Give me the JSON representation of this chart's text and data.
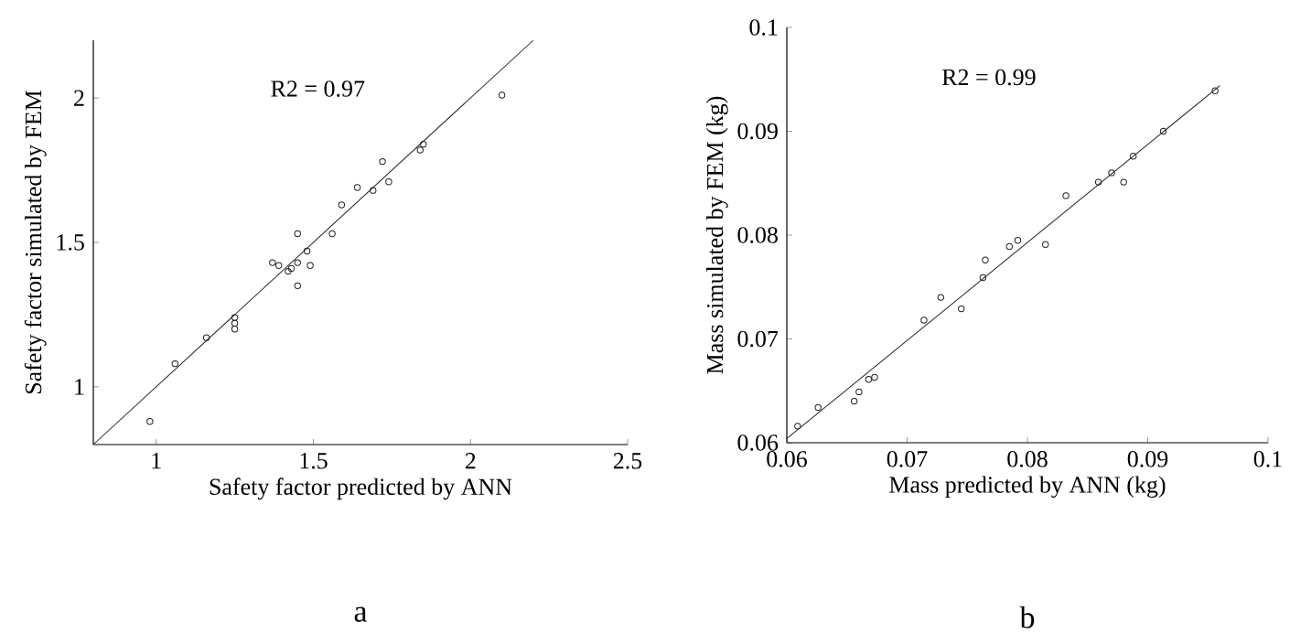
{
  "chart_data": [
    {
      "type": "scatter",
      "xlabel": "Safety factor predicted by ANN",
      "ylabel": "Safety factor simulated by FEM",
      "annotations": [
        "R2 = 0.97",
        "a"
      ],
      "xlim": [
        0.8,
        2.5
      ],
      "ylim": [
        0.8,
        2.2
      ],
      "xticks": [
        1,
        1.5,
        2,
        2.5
      ],
      "yticks": [
        1,
        1.5,
        2
      ],
      "series": [
        {
          "marker": "circle",
          "color": "#222222",
          "x": [
            0.98,
            1.06,
            1.16,
            1.25,
            1.25,
            1.25,
            1.37,
            1.39,
            1.42,
            1.43,
            1.45,
            1.45,
            1.45,
            1.48,
            1.49,
            1.56,
            1.59,
            1.64,
            1.69,
            1.72,
            1.74,
            1.85,
            1.84,
            2.1
          ],
          "values": [
            0.88,
            1.08,
            1.17,
            1.24,
            1.22,
            1.2,
            1.43,
            1.42,
            1.4,
            1.41,
            1.43,
            1.53,
            1.35,
            1.47,
            1.42,
            1.53,
            1.63,
            1.69,
            1.68,
            1.78,
            1.71,
            1.84,
            1.82,
            2.01
          ]
        },
        {
          "type": "line",
          "marker": "none",
          "color": "#222222",
          "x": [
            0.8,
            2.2
          ],
          "values": [
            0.8,
            2.2
          ]
        }
      ]
    },
    {
      "type": "scatter",
      "xlabel": "Mass predicted by ANN (kg)",
      "ylabel": "Mass simulated by FEM (kg)",
      "annotations": [
        "R2 = 0.99",
        "b"
      ],
      "xlim": [
        0.06,
        0.1
      ],
      "ylim": [
        0.06,
        0.1
      ],
      "xticks": [
        0.06,
        0.07,
        0.08,
        0.09,
        0.1
      ],
      "yticks": [
        0.06,
        0.07,
        0.08,
        0.09,
        0.1
      ],
      "series": [
        {
          "marker": "circle",
          "color": "#222222",
          "x": [
            0.0609,
            0.0626,
            0.0656,
            0.066,
            0.0668,
            0.0673,
            0.0714,
            0.0728,
            0.0745,
            0.0763,
            0.0765,
            0.0785,
            0.0792,
            0.0815,
            0.0832,
            0.0859,
            0.087,
            0.088,
            0.0888,
            0.0913,
            0.0956
          ],
          "values": [
            0.0616,
            0.0634,
            0.064,
            0.0649,
            0.0661,
            0.0663,
            0.0718,
            0.074,
            0.0729,
            0.0759,
            0.0776,
            0.0789,
            0.0795,
            0.0791,
            0.0838,
            0.0851,
            0.086,
            0.0851,
            0.0876,
            0.09,
            0.0939
          ]
        },
        {
          "type": "line",
          "marker": "none",
          "color": "#222222",
          "x": [
            0.06,
            0.096
          ],
          "values": [
            0.0604,
            0.0944
          ]
        }
      ]
    }
  ]
}
